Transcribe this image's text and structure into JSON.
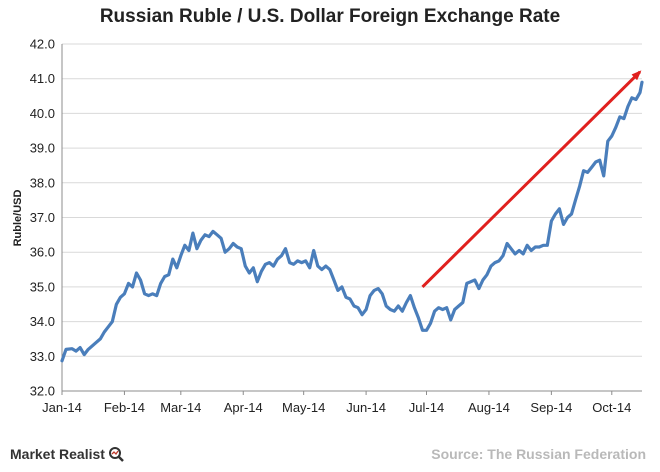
{
  "chart_data": {
    "type": "line",
    "title": "Russian Ruble / U.S. Dollar Foreign Exchange Rate",
    "xlabel": "",
    "ylabel": "Ruble/USD",
    "ylim": [
      32.0,
      42.0
    ],
    "yticks": [
      "32.0",
      "33.0",
      "34.0",
      "35.0",
      "36.0",
      "37.0",
      "38.0",
      "39.0",
      "40.0",
      "41.0",
      "42.0"
    ],
    "xticks": [
      {
        "label": "Jan-14",
        "x": "2014-01-01"
      },
      {
        "label": "Feb-14",
        "x": "2014-02-01"
      },
      {
        "label": "Mar-14",
        "x": "2014-03-01"
      },
      {
        "label": "Apr-14",
        "x": "2014-04-01"
      },
      {
        "label": "May-14",
        "x": "2014-05-01"
      },
      {
        "label": "Jun-14",
        "x": "2014-06-01"
      },
      {
        "label": "Jul-14",
        "x": "2014-07-01"
      },
      {
        "label": "Aug-14",
        "x": "2014-08-01"
      },
      {
        "label": "Sep-14",
        "x": "2014-09-01"
      },
      {
        "label": "Oct-14",
        "x": "2014-10-01"
      }
    ],
    "grid": "horizontal",
    "legend": "none",
    "series": [
      {
        "color": "#4a7ebb",
        "points": [
          [
            "2014-01-01",
            32.87
          ],
          [
            "2014-01-03",
            33.2
          ],
          [
            "2014-01-06",
            33.22
          ],
          [
            "2014-01-08",
            33.15
          ],
          [
            "2014-01-10",
            33.25
          ],
          [
            "2014-01-12",
            33.05
          ],
          [
            "2014-01-14",
            33.2
          ],
          [
            "2014-01-16",
            33.3
          ],
          [
            "2014-01-18",
            33.4
          ],
          [
            "2014-01-20",
            33.5
          ],
          [
            "2014-01-22",
            33.7
          ],
          [
            "2014-01-24",
            33.85
          ],
          [
            "2014-01-26",
            34.0
          ],
          [
            "2014-01-28",
            34.5
          ],
          [
            "2014-01-30",
            34.7
          ],
          [
            "2014-02-01",
            34.8
          ],
          [
            "2014-02-03",
            35.1
          ],
          [
            "2014-02-05",
            35.0
          ],
          [
            "2014-02-07",
            35.4
          ],
          [
            "2014-02-09",
            35.2
          ],
          [
            "2014-02-11",
            34.8
          ],
          [
            "2014-02-13",
            34.75
          ],
          [
            "2014-02-15",
            34.8
          ],
          [
            "2014-02-17",
            34.75
          ],
          [
            "2014-02-19",
            35.1
          ],
          [
            "2014-02-21",
            35.3
          ],
          [
            "2014-02-23",
            35.35
          ],
          [
            "2014-02-25",
            35.8
          ],
          [
            "2014-02-27",
            35.55
          ],
          [
            "2014-03-01",
            35.9
          ],
          [
            "2014-03-03",
            36.2
          ],
          [
            "2014-03-05",
            36.05
          ],
          [
            "2014-03-07",
            36.55
          ],
          [
            "2014-03-09",
            36.1
          ],
          [
            "2014-03-11",
            36.35
          ],
          [
            "2014-03-13",
            36.5
          ],
          [
            "2014-03-15",
            36.45
          ],
          [
            "2014-03-17",
            36.6
          ],
          [
            "2014-03-19",
            36.5
          ],
          [
            "2014-03-21",
            36.4
          ],
          [
            "2014-03-23",
            36.0
          ],
          [
            "2014-03-25",
            36.1
          ],
          [
            "2014-03-27",
            36.25
          ],
          [
            "2014-03-29",
            36.15
          ],
          [
            "2014-03-31",
            36.1
          ],
          [
            "2014-04-02",
            35.6
          ],
          [
            "2014-04-04",
            35.4
          ],
          [
            "2014-04-06",
            35.55
          ],
          [
            "2014-04-08",
            35.15
          ],
          [
            "2014-04-10",
            35.45
          ],
          [
            "2014-04-12",
            35.65
          ],
          [
            "2014-04-14",
            35.7
          ],
          [
            "2014-04-16",
            35.6
          ],
          [
            "2014-04-18",
            35.8
          ],
          [
            "2014-04-20",
            35.9
          ],
          [
            "2014-04-22",
            36.1
          ],
          [
            "2014-04-24",
            35.7
          ],
          [
            "2014-04-26",
            35.65
          ],
          [
            "2014-04-28",
            35.75
          ],
          [
            "2014-04-30",
            35.7
          ],
          [
            "2014-05-02",
            35.75
          ],
          [
            "2014-05-04",
            35.55
          ],
          [
            "2014-05-06",
            36.05
          ],
          [
            "2014-05-08",
            35.6
          ],
          [
            "2014-05-10",
            35.5
          ],
          [
            "2014-05-12",
            35.6
          ],
          [
            "2014-05-14",
            35.5
          ],
          [
            "2014-05-16",
            35.2
          ],
          [
            "2014-05-18",
            34.9
          ],
          [
            "2014-05-20",
            35.0
          ],
          [
            "2014-05-22",
            34.7
          ],
          [
            "2014-05-24",
            34.65
          ],
          [
            "2014-05-26",
            34.45
          ],
          [
            "2014-05-28",
            34.4
          ],
          [
            "2014-05-30",
            34.2
          ],
          [
            "2014-06-01",
            34.35
          ],
          [
            "2014-06-03",
            34.75
          ],
          [
            "2014-06-05",
            34.9
          ],
          [
            "2014-06-07",
            34.95
          ],
          [
            "2014-06-09",
            34.8
          ],
          [
            "2014-06-11",
            34.45
          ],
          [
            "2014-06-13",
            34.35
          ],
          [
            "2014-06-15",
            34.3
          ],
          [
            "2014-06-17",
            34.45
          ],
          [
            "2014-06-19",
            34.3
          ],
          [
            "2014-06-21",
            34.55
          ],
          [
            "2014-06-23",
            34.75
          ],
          [
            "2014-06-25",
            34.4
          ],
          [
            "2014-06-27",
            34.1
          ],
          [
            "2014-06-29",
            33.75
          ],
          [
            "2014-07-01",
            33.75
          ],
          [
            "2014-07-03",
            33.95
          ],
          [
            "2014-07-05",
            34.3
          ],
          [
            "2014-07-07",
            34.4
          ],
          [
            "2014-07-09",
            34.35
          ],
          [
            "2014-07-11",
            34.4
          ],
          [
            "2014-07-13",
            34.05
          ],
          [
            "2014-07-15",
            34.35
          ],
          [
            "2014-07-17",
            34.45
          ],
          [
            "2014-07-19",
            34.55
          ],
          [
            "2014-07-21",
            35.1
          ],
          [
            "2014-07-23",
            35.15
          ],
          [
            "2014-07-25",
            35.2
          ],
          [
            "2014-07-27",
            34.95
          ],
          [
            "2014-07-29",
            35.2
          ],
          [
            "2014-07-31",
            35.35
          ],
          [
            "2014-08-02",
            35.6
          ],
          [
            "2014-08-04",
            35.7
          ],
          [
            "2014-08-06",
            35.75
          ],
          [
            "2014-08-08",
            35.9
          ],
          [
            "2014-08-10",
            36.25
          ],
          [
            "2014-08-12",
            36.1
          ],
          [
            "2014-08-14",
            35.95
          ],
          [
            "2014-08-16",
            36.05
          ],
          [
            "2014-08-18",
            35.95
          ],
          [
            "2014-08-20",
            36.2
          ],
          [
            "2014-08-22",
            36.05
          ],
          [
            "2014-08-24",
            36.15
          ],
          [
            "2014-08-26",
            36.15
          ],
          [
            "2014-08-28",
            36.2
          ],
          [
            "2014-08-30",
            36.2
          ],
          [
            "2014-09-01",
            36.9
          ],
          [
            "2014-09-03",
            37.1
          ],
          [
            "2014-09-05",
            37.25
          ],
          [
            "2014-09-07",
            36.8
          ],
          [
            "2014-09-09",
            37.0
          ],
          [
            "2014-09-11",
            37.1
          ],
          [
            "2014-09-13",
            37.5
          ],
          [
            "2014-09-15",
            37.9
          ],
          [
            "2014-09-17",
            38.35
          ],
          [
            "2014-09-19",
            38.3
          ],
          [
            "2014-09-21",
            38.45
          ],
          [
            "2014-09-23",
            38.6
          ],
          [
            "2014-09-25",
            38.65
          ],
          [
            "2014-09-27",
            38.2
          ],
          [
            "2014-09-29",
            39.2
          ],
          [
            "2014-10-01",
            39.35
          ],
          [
            "2014-10-03",
            39.6
          ],
          [
            "2014-10-05",
            39.9
          ],
          [
            "2014-10-07",
            39.85
          ],
          [
            "2014-10-09",
            40.2
          ],
          [
            "2014-10-11",
            40.45
          ],
          [
            "2014-10-13",
            40.4
          ],
          [
            "2014-10-15",
            40.6
          ],
          [
            "2014-10-16",
            40.9
          ]
        ]
      }
    ],
    "annotations": [
      {
        "type": "arrow",
        "color": "#e0201e",
        "from": [
          "2014-06-29",
          35.0
        ],
        "to": [
          "2014-10-15",
          41.2
        ]
      }
    ]
  },
  "footer": {
    "logo_text": "Market Realist",
    "logo_icon": "magnifier-icon",
    "source": "Source: The Russian Federation"
  }
}
